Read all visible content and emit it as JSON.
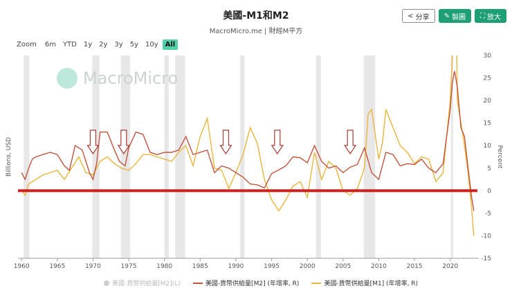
{
  "header": {
    "title": "美國-M1和M2",
    "subtitle": "MacroMicro.me | 財經M平方"
  },
  "toolbar": {
    "share_label": "分享",
    "copy_label": "製圖",
    "enlarge_label": "放大"
  },
  "zoom": {
    "label": "Zoom",
    "options": [
      "6m",
      "YTD",
      "1y",
      "2y",
      "3y",
      "5y",
      "10y",
      "All"
    ],
    "selected": "All"
  },
  "watermark": "MacroMicro",
  "colors": {
    "m2": "#c0533a",
    "m1": "#eab53b",
    "zero_line": "#cc1f1f",
    "recession": "#e7e7e7",
    "arrow": "#a83b32"
  },
  "chart_data": {
    "type": "line",
    "title": "美國-M1和M2",
    "xlabel": "",
    "ylabel_left": "Billions, USD",
    "ylabel_right": "Percent",
    "xlim": [
      1959.5,
      2024
    ],
    "ylim": [
      -15,
      30
    ],
    "x_ticks": [
      1960,
      1965,
      1970,
      1975,
      1980,
      1985,
      1990,
      1995,
      2000,
      2005,
      2010,
      2015,
      2020
    ],
    "y_ticks": [
      -15,
      -10,
      -5,
      0,
      5,
      10,
      15,
      20,
      25,
      30
    ],
    "recessions": [
      [
        1960.3,
        1961.1
      ],
      [
        1969.9,
        1970.9
      ],
      [
        1973.9,
        1975.2
      ],
      [
        1980.0,
        1980.6
      ],
      [
        1981.5,
        1982.9
      ],
      [
        1990.6,
        1991.2
      ],
      [
        2001.2,
        2001.9
      ],
      [
        2007.9,
        2009.5
      ],
      [
        2020.1,
        2020.4
      ]
    ],
    "arrows_at": [
      1970.0,
      1974.3,
      1988.6,
      1995.8,
      2006.0
    ],
    "zero_line": 0,
    "series": [
      {
        "name": "美國-貨幣供給量[M2] (年增率, R)",
        "x": [
          1960,
          1960.5,
          1961,
          1961.5,
          1962,
          1963,
          1964,
          1965,
          1966,
          1966.7,
          1967.5,
          1968.5,
          1969.5,
          1970,
          1970.5,
          1971,
          1972,
          1973,
          1973.7,
          1974.5,
          1975,
          1976,
          1977,
          1978,
          1979,
          1980,
          1981,
          1982,
          1983,
          1984,
          1985,
          1986,
          1987,
          1988,
          1989,
          1990,
          1991,
          1992,
          1993,
          1994,
          1995,
          1996,
          1997,
          1998,
          1999,
          2000,
          2001,
          2002,
          2003,
          2004,
          2005,
          2006,
          2007,
          2008,
          2009,
          2010,
          2011,
          2012,
          2013,
          2014,
          2015,
          2016,
          2017,
          2018,
          2019,
          2020,
          2020.3,
          2020.6,
          2021,
          2021.5,
          2022,
          2022.5,
          2023,
          2023.3
        ],
        "values": [
          4.0,
          2.5,
          5.0,
          7.0,
          7.5,
          8.0,
          8.5,
          8.0,
          5.5,
          4.5,
          10.0,
          9.0,
          4.0,
          2.5,
          6.0,
          13.0,
          13.0,
          9.0,
          6.5,
          5.5,
          9.5,
          13.0,
          12.5,
          8.5,
          8.0,
          8.5,
          8.5,
          9.0,
          12.0,
          8.0,
          8.5,
          9.0,
          4.0,
          5.5,
          5.0,
          4.0,
          3.0,
          1.5,
          1.3,
          0.6,
          3.8,
          4.6,
          5.5,
          7.5,
          7.3,
          6.2,
          10.0,
          6.5,
          5.0,
          5.5,
          4.0,
          5.2,
          5.8,
          9.5,
          4.0,
          2.5,
          8.5,
          8.0,
          5.5,
          6.0,
          5.8,
          7.0,
          5.0,
          4.0,
          6.0,
          18.0,
          24.0,
          26.5,
          23.0,
          14.0,
          12.0,
          5.0,
          -1.5,
          -4.5
        ]
      },
      {
        "name": "美國-貨幣供給量[M1] (年增率, R)",
        "x": [
          1960,
          1960.5,
          1961,
          1962,
          1963,
          1964,
          1965,
          1966,
          1967,
          1968,
          1969,
          1970,
          1971,
          1972,
          1973,
          1974,
          1975,
          1976,
          1977,
          1978,
          1979,
          1980,
          1981,
          1982,
          1983,
          1984,
          1985,
          1986,
          1987,
          1988,
          1989,
          1990,
          1991,
          1992,
          1993,
          1994,
          1995,
          1996,
          1997,
          1998,
          1999,
          2000,
          2001,
          2002,
          2003,
          2004,
          2005,
          2006,
          2007,
          2008,
          2008.5,
          2009,
          2010,
          2010.5,
          2011,
          2012,
          2013,
          2014,
          2015,
          2016,
          2017,
          2018,
          2019,
          2020,
          2020.3,
          2020.5,
          2020.9,
          2021,
          2022,
          2022.5,
          2023,
          2023.3
        ],
        "values": [
          0.0,
          -1.0,
          1.5,
          2.5,
          3.5,
          4.0,
          4.5,
          2.5,
          5.0,
          7.5,
          4.0,
          3.5,
          6.5,
          7.5,
          6.0,
          5.0,
          4.5,
          6.0,
          8.0,
          8.0,
          7.5,
          7.0,
          6.5,
          8.5,
          10.0,
          5.5,
          12.0,
          16.0,
          5.0,
          4.5,
          0.5,
          4.0,
          8.0,
          14.0,
          10.5,
          2.5,
          -2.0,
          -4.5,
          -2.0,
          1.0,
          2.0,
          -1.5,
          8.5,
          2.5,
          6.5,
          5.0,
          0.0,
          -1.0,
          0.5,
          5.0,
          17.0,
          18.0,
          7.0,
          10.5,
          18.0,
          14.0,
          10.0,
          8.5,
          6.0,
          7.5,
          7.0,
          2.0,
          4.0,
          20.0,
          30.0,
          32.0,
          32.0,
          20.0,
          10.0,
          4.0,
          -4.0,
          -10.0
        ]
      }
    ]
  },
  "legend": [
    {
      "label": "美國-貨幣供給量[M2](L)",
      "enabled": false
    },
    {
      "label": "美國-貨幣供給量[M2] (年增率, R)",
      "enabled": true,
      "series": "m2"
    },
    {
      "label": "美國-貨幣供給量[M1] (年增率, R)",
      "enabled": true,
      "series": "m1"
    }
  ]
}
